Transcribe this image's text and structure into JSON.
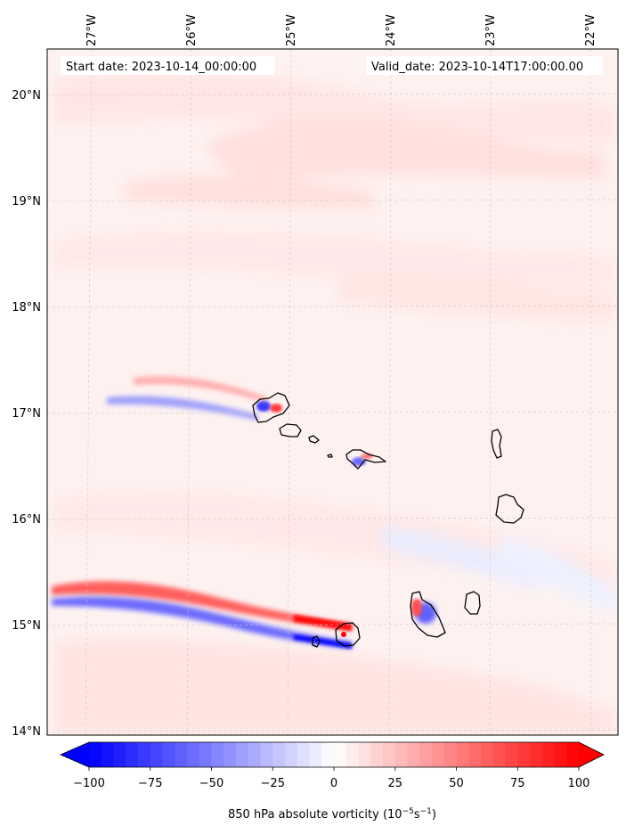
{
  "header": {
    "start_label": "Start date: 2023-10-14_00:00:00",
    "valid_label": "Valid_date: 2023-10-14T17:00:00.00"
  },
  "axes": {
    "lon_labels": [
      "27°W",
      "26°W",
      "25°W",
      "24°W",
      "23°W",
      "22°W"
    ],
    "lat_labels": [
      "20°N",
      "19°N",
      "18°N",
      "17°N",
      "16°N",
      "15°N",
      "14°N"
    ]
  },
  "colorbar": {
    "ticks": [
      "−100",
      "−75",
      "−50",
      "−25",
      "0",
      "25",
      "50",
      "75",
      "100"
    ],
    "label_main": "850 hPa absolute vorticity (10",
    "label_exp1": "−5",
    "label_mid": "s",
    "label_exp2": "−1",
    "label_end": ")",
    "min": -100,
    "max": 100,
    "extend": "both",
    "colors": {
      "low": "#0000ff",
      "mid": "#ffffff",
      "high": "#ff0000"
    }
  },
  "chart_data": {
    "type": "heatmap",
    "variable": "850 hPa absolute vorticity",
    "units": "10^-5 s^-1",
    "lon_range": [
      "27°W",
      "22°W"
    ],
    "lat_range": [
      "14°N",
      "20°N"
    ],
    "features": [
      {
        "kind": "positive vorticity streak",
        "sign": "positive"
      },
      {
        "kind": "negative vorticity streak",
        "sign": "negative"
      }
    ]
  }
}
